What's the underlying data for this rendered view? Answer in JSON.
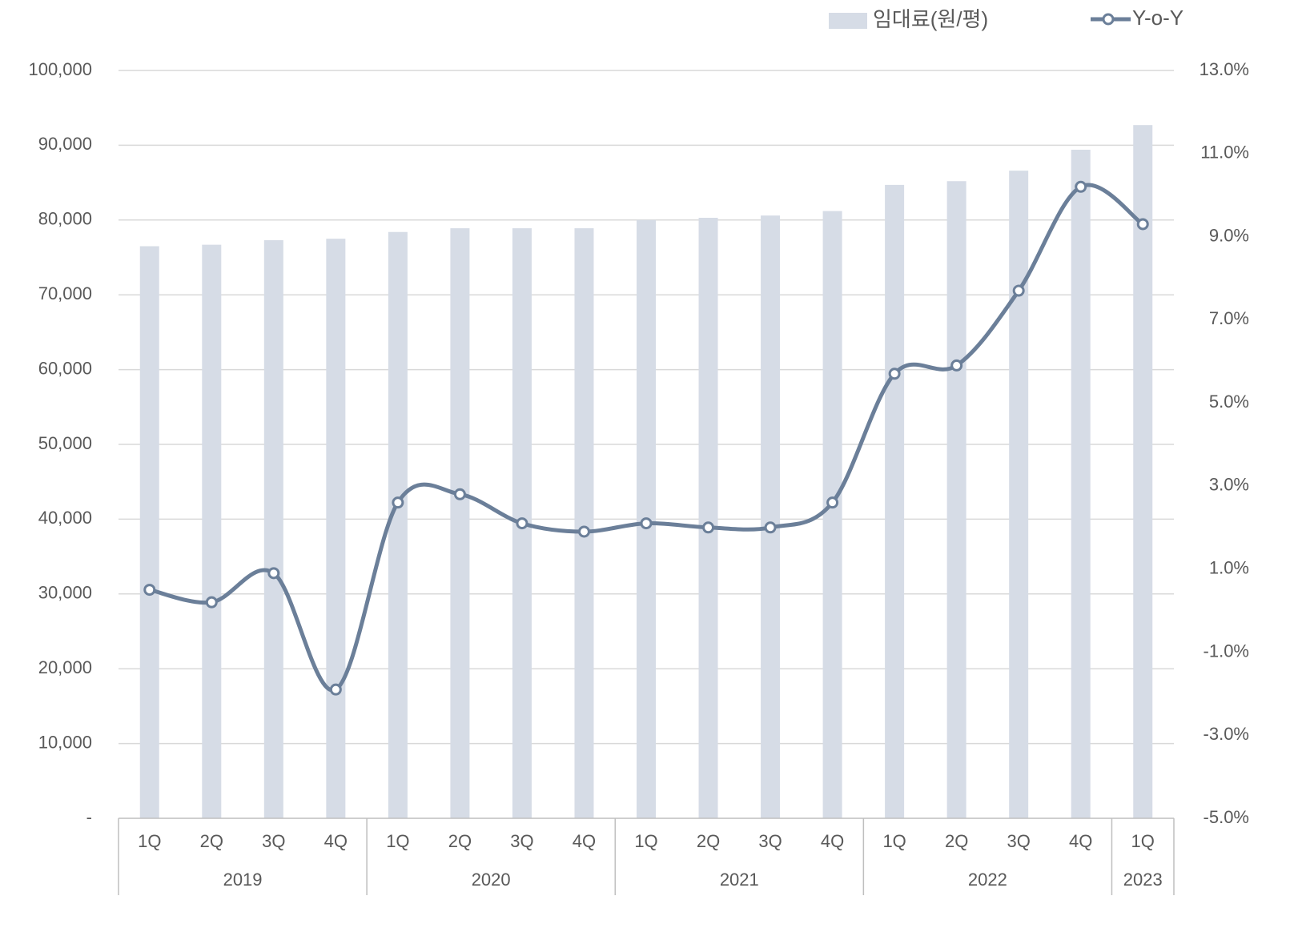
{
  "chart_data": {
    "type": "combo",
    "categories": [
      "1Q",
      "2Q",
      "3Q",
      "4Q",
      "1Q",
      "2Q",
      "3Q",
      "4Q",
      "1Q",
      "2Q",
      "3Q",
      "4Q",
      "1Q",
      "2Q",
      "3Q",
      "4Q",
      "1Q"
    ],
    "groups": [
      {
        "label": "2019",
        "start": 0,
        "end": 3
      },
      {
        "label": "2020",
        "start": 4,
        "end": 7
      },
      {
        "label": "2021",
        "start": 8,
        "end": 11
      },
      {
        "label": "2022",
        "start": 12,
        "end": 15
      },
      {
        "label": "2023",
        "start": 16,
        "end": 16
      }
    ],
    "series": [
      {
        "name": "임대료(원/평)",
        "type": "bar",
        "color": "#d6dce6",
        "values": [
          76500,
          76700,
          77300,
          77500,
          78400,
          78900,
          78900,
          78900,
          80000,
          80300,
          80600,
          81200,
          84700,
          85200,
          86600,
          89400,
          92700
        ]
      },
      {
        "name": "Y-o-Y",
        "type": "line",
        "axis": "y2",
        "color": "#6b7f99",
        "smooth": true,
        "marker": "circle",
        "values": [
          0.5,
          0.2,
          0.9,
          -1.9,
          2.6,
          2.8,
          2.1,
          1.9,
          2.1,
          2.0,
          2.0,
          2.6,
          5.7,
          5.9,
          7.7,
          10.2,
          9.3
        ]
      }
    ],
    "ylim": [
      0,
      100000
    ],
    "yticks": [
      {
        "value": 0,
        "label": "-"
      },
      {
        "value": 10000,
        "label": "10,000"
      },
      {
        "value": 20000,
        "label": "20,000"
      },
      {
        "value": 30000,
        "label": "30,000"
      },
      {
        "value": 40000,
        "label": "40,000"
      },
      {
        "value": 50000,
        "label": "50,000"
      },
      {
        "value": 60000,
        "label": "60,000"
      },
      {
        "value": 70000,
        "label": "70,000"
      },
      {
        "value": 80000,
        "label": "80,000"
      },
      {
        "value": 90000,
        "label": "90,000"
      },
      {
        "value": 100000,
        "label": "100,000"
      }
    ],
    "y2lim": [
      -5,
      13
    ],
    "y2ticks": [
      {
        "value": -5,
        "label": "-5.0%"
      },
      {
        "value": -3,
        "label": "-3.0%"
      },
      {
        "value": -1,
        "label": "-1.0%"
      },
      {
        "value": 1,
        "label": "1.0%"
      },
      {
        "value": 3,
        "label": "3.0%"
      },
      {
        "value": 5,
        "label": "5.0%"
      },
      {
        "value": 7,
        "label": "7.0%"
      },
      {
        "value": 9,
        "label": "9.0%"
      },
      {
        "value": 11,
        "label": "11.0%"
      },
      {
        "value": 13,
        "label": "13.0%"
      }
    ],
    "grid": true,
    "legend": "top-right"
  }
}
